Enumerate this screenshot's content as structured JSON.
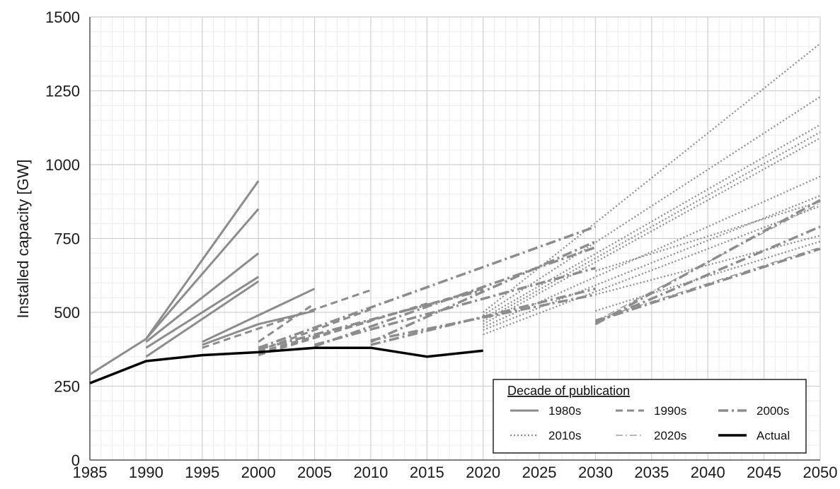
{
  "chart_data": {
    "type": "line",
    "title": "",
    "xlabel": "",
    "ylabel": "Installed capacity [GW]",
    "xlim": [
      1985,
      2050
    ],
    "ylim": [
      0,
      1500
    ],
    "x_ticks": [
      "1985",
      "1990",
      "1995",
      "2000",
      "2005",
      "2010",
      "2015",
      "2020",
      "2025",
      "2030",
      "2035",
      "2040",
      "2045",
      "2050"
    ],
    "y_ticks": [
      "0",
      "250",
      "500",
      "750",
      "1000",
      "1250",
      "1500"
    ],
    "grid": true,
    "legend": {
      "title": "Decade of publication",
      "position": "bottom-right",
      "entries": [
        {
          "label": "1980s",
          "style": "solid"
        },
        {
          "label": "1990s",
          "style": "dashed"
        },
        {
          "label": "2000s",
          "style": "dashdot"
        },
        {
          "label": "2010s",
          "style": "dotted"
        },
        {
          "label": "2020s",
          "style": "thin-dashdot"
        },
        {
          "label": "Actual",
          "style": "actual"
        }
      ]
    },
    "colors": {
      "projection": "#8c8c8c",
      "actual": "#000000",
      "grid": "#d9d9d9"
    },
    "series": [
      {
        "group": "1980s",
        "x": [
          1985,
          1990,
          2000
        ],
        "y": [
          290,
          410,
          945
        ]
      },
      {
        "group": "1980s",
        "x": [
          1990,
          2000
        ],
        "y": [
          410,
          850
        ]
      },
      {
        "group": "1980s",
        "x": [
          1990,
          2000
        ],
        "y": [
          400,
          700
        ]
      },
      {
        "group": "1980s",
        "x": [
          1990,
          2000
        ],
        "y": [
          380,
          620
        ]
      },
      {
        "group": "1980s",
        "x": [
          1990,
          2000
        ],
        "y": [
          350,
          605
        ]
      },
      {
        "group": "1980s",
        "x": [
          1995,
          2005
        ],
        "y": [
          400,
          580
        ]
      },
      {
        "group": "1980s",
        "x": [
          1995,
          2000,
          2005
        ],
        "y": [
          390,
          460,
          505
        ]
      },
      {
        "group": "1990s",
        "x": [
          1995,
          2010
        ],
        "y": [
          380,
          575
        ]
      },
      {
        "group": "1990s",
        "x": [
          2000,
          2005
        ],
        "y": [
          400,
          530
        ]
      },
      {
        "group": "1990s",
        "x": [
          2000,
          2010
        ],
        "y": [
          370,
          510
        ]
      },
      {
        "group": "1990s",
        "x": [
          2000,
          2010
        ],
        "y": [
          360,
          470
        ]
      },
      {
        "group": "1990s",
        "x": [
          2000,
          2015
        ],
        "y": [
          355,
          530
        ]
      },
      {
        "group": "1990s",
        "x": [
          2000,
          2020
        ],
        "y": [
          365,
          580
        ]
      },
      {
        "group": "2000s",
        "x": [
          2000,
          2020
        ],
        "y": [
          375,
          575
        ]
      },
      {
        "group": "2000s",
        "x": [
          2000,
          2030
        ],
        "y": [
          380,
          790
        ]
      },
      {
        "group": "2000s",
        "x": [
          2005,
          2030
        ],
        "y": [
          385,
          720
        ]
      },
      {
        "group": "2000s",
        "x": [
          2005,
          2030
        ],
        "y": [
          390,
          650
        ]
      },
      {
        "group": "2000s",
        "x": [
          2010,
          2030
        ],
        "y": [
          390,
          580
        ]
      },
      {
        "group": "2000s",
        "x": [
          2010,
          2030
        ],
        "y": [
          405,
          560
        ]
      },
      {
        "group": "2000s",
        "x": [
          2010,
          2030
        ],
        "y": [
          400,
          740
        ]
      },
      {
        "group": "2000s",
        "x": [
          2030,
          2050
        ],
        "y": [
          460,
          880
        ]
      },
      {
        "group": "2000s",
        "x": [
          2030,
          2050
        ],
        "y": [
          465,
          790
        ]
      },
      {
        "group": "2000s",
        "x": [
          2030,
          2050
        ],
        "y": [
          470,
          715
        ]
      },
      {
        "group": "2010s",
        "x": [
          2020,
          2050
        ],
        "y": [
          500,
          1410
        ]
      },
      {
        "group": "2010s",
        "x": [
          2020,
          2050
        ],
        "y": [
          490,
          1230
        ]
      },
      {
        "group": "2010s",
        "x": [
          2020,
          2050
        ],
        "y": [
          480,
          1135
        ]
      },
      {
        "group": "2010s",
        "x": [
          2020,
          2050
        ],
        "y": [
          470,
          1110
        ]
      },
      {
        "group": "2010s",
        "x": [
          2020,
          2050
        ],
        "y": [
          460,
          1090
        ]
      },
      {
        "group": "2010s",
        "x": [
          2020,
          2050
        ],
        "y": [
          450,
          960
        ]
      },
      {
        "group": "2010s",
        "x": [
          2020,
          2050
        ],
        "y": [
          440,
          895
        ]
      },
      {
        "group": "2010s",
        "x": [
          2020,
          2050
        ],
        "y": [
          425,
          860
        ]
      },
      {
        "group": "2010s",
        "x": [
          2030,
          2050
        ],
        "y": [
          640,
          875
        ]
      },
      {
        "group": "2010s",
        "x": [
          2030,
          2050
        ],
        "y": [
          560,
          760
        ]
      },
      {
        "group": "2010s",
        "x": [
          2030,
          2050
        ],
        "y": [
          505,
          740
        ]
      },
      {
        "group": "2020s",
        "x": [
          2030,
          2050
        ],
        "y": [
          470,
          870
        ]
      },
      {
        "group": "2020s",
        "x": [
          2030,
          2050
        ],
        "y": [
          475,
          720
        ]
      },
      {
        "group": "Actual",
        "x": [
          1985,
          1990,
          1995,
          2000,
          2005,
          2010,
          2015,
          2020
        ],
        "y": [
          260,
          335,
          355,
          365,
          380,
          380,
          350,
          370
        ]
      }
    ]
  }
}
